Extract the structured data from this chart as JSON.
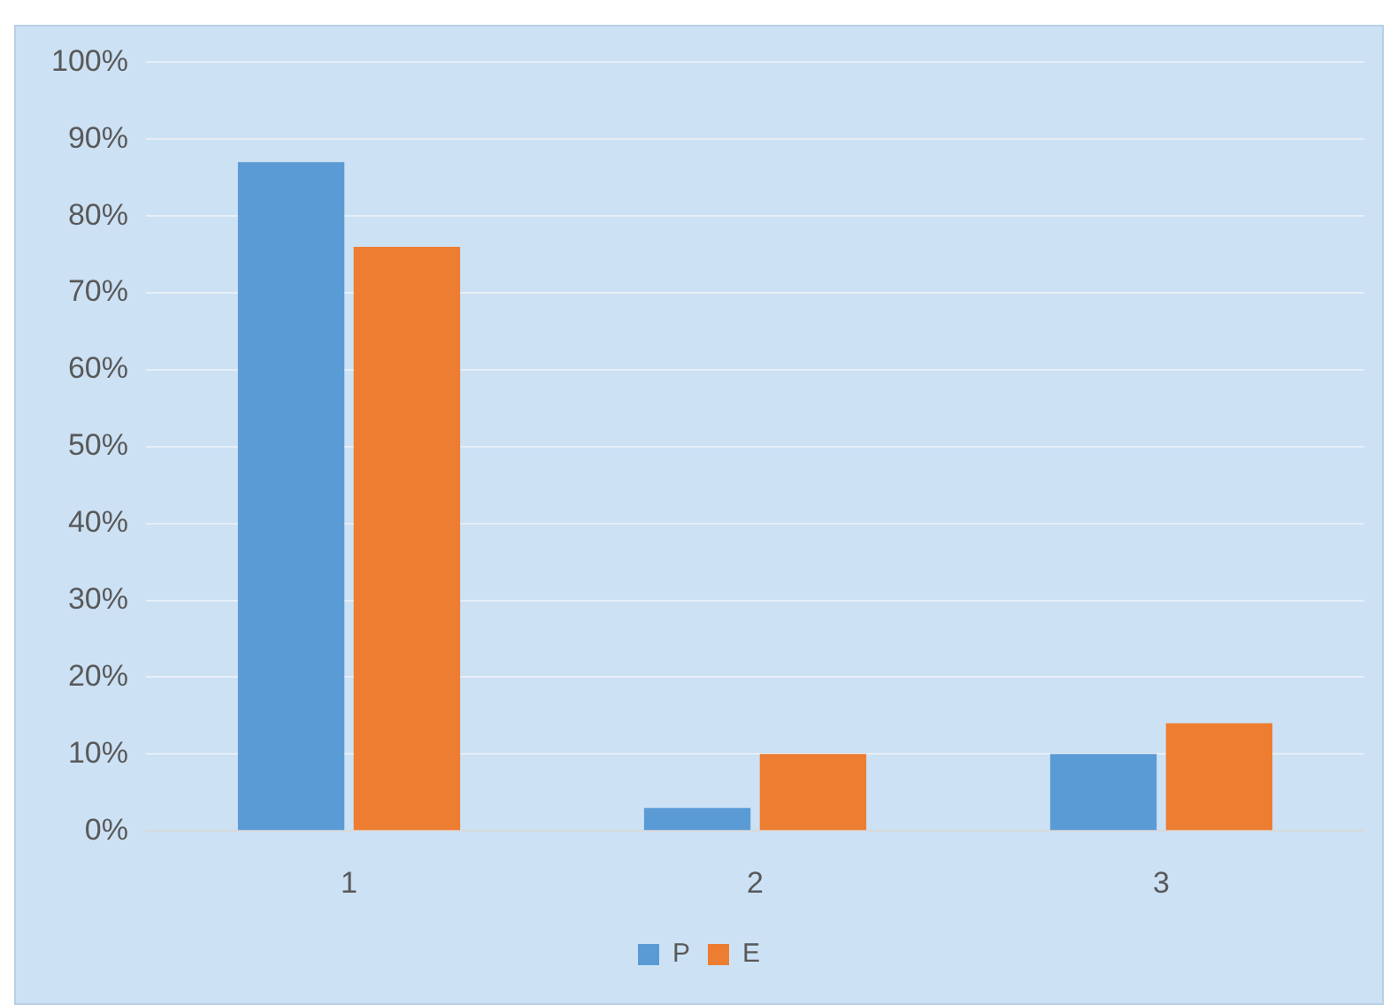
{
  "chart_data": {
    "type": "bar",
    "categories": [
      "1",
      "2",
      "3"
    ],
    "series": [
      {
        "name": "P",
        "color": "#5b9bd5",
        "values": [
          87,
          3,
          10
        ]
      },
      {
        "name": "E",
        "color": "#ed7d31",
        "values": [
          76,
          10,
          14
        ]
      }
    ],
    "ylim": [
      0,
      100
    ],
    "yticks": [
      {
        "value": 0,
        "label": "0%"
      },
      {
        "value": 10,
        "label": "10%"
      },
      {
        "value": 20,
        "label": "20%"
      },
      {
        "value": 30,
        "label": "30%"
      },
      {
        "value": 40,
        "label": "40%"
      },
      {
        "value": 50,
        "label": "50%"
      },
      {
        "value": 60,
        "label": "60%"
      },
      {
        "value": 70,
        "label": "70%"
      },
      {
        "value": 80,
        "label": "80%"
      },
      {
        "value": 90,
        "label": "90%"
      },
      {
        "value": 100,
        "label": "100%"
      }
    ],
    "grid": "y",
    "legend": "bottom"
  }
}
